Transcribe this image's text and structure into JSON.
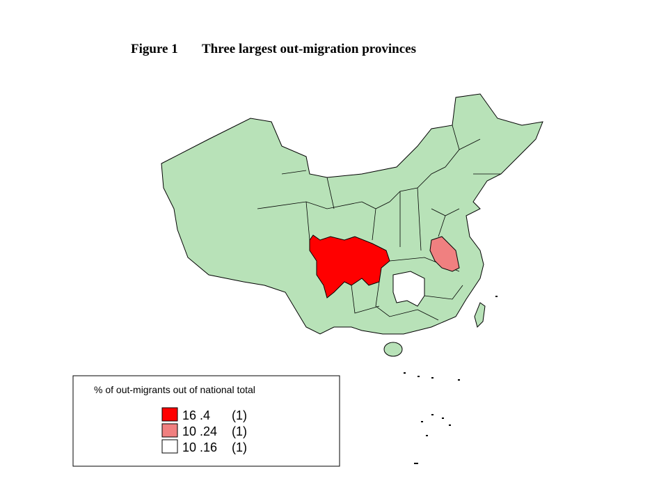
{
  "figure_label": "Figure 1",
  "title": "Three largest out-migration provinces",
  "map": {
    "fill": "#b8e2b8"
  },
  "legend": {
    "title": "% of out-migrants out of national total",
    "items": [
      {
        "label": "16 .4",
        "count": "(1)",
        "color": "#ff0000"
      },
      {
        "label": "10 .24",
        "count": "(1)",
        "color": "#f08080"
      },
      {
        "label": "10 .16",
        "count": "(1)",
        "color": "#ffffff"
      }
    ]
  }
}
